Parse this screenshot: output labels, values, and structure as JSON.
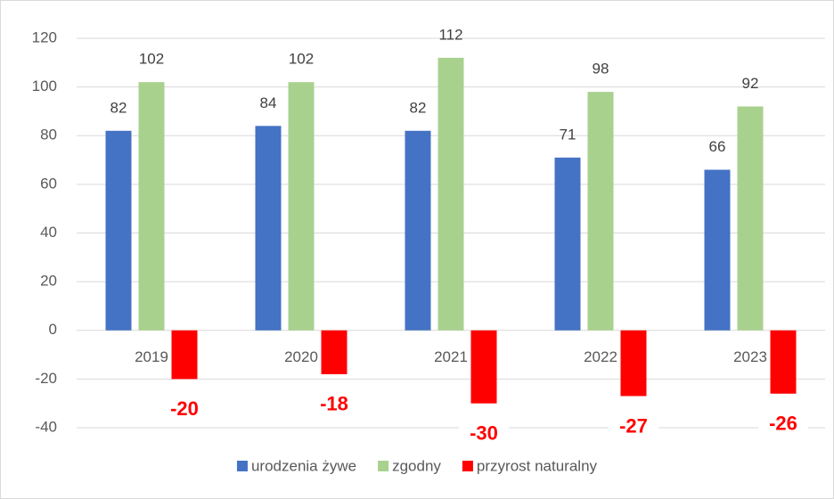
{
  "chart_data": {
    "type": "bar",
    "categories": [
      "2019",
      "2020",
      "2021",
      "2022",
      "2023"
    ],
    "series": [
      {
        "name": "urodzenia żywe",
        "color": "#4472c4",
        "values": [
          82,
          84,
          82,
          71,
          66
        ]
      },
      {
        "name": "zgodny",
        "color": "#a9d18e",
        "values": [
          102,
          102,
          112,
          98,
          92
        ]
      },
      {
        "name": "przyrost naturalny",
        "color": "#ff0000",
        "values": [
          -20,
          -18,
          -30,
          -27,
          -26
        ]
      }
    ],
    "ylim": [
      -40,
      120
    ],
    "yticks": [
      -40,
      -20,
      0,
      20,
      40,
      60,
      80,
      100,
      120
    ],
    "grid": true,
    "legend": "bottom"
  }
}
